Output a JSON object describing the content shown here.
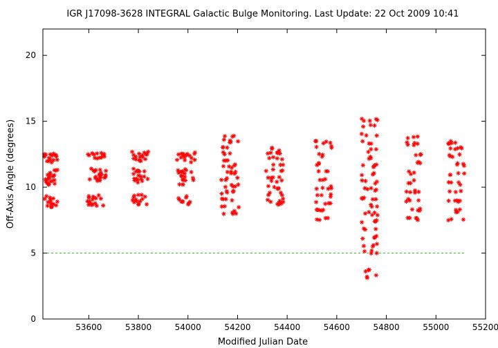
{
  "chart_data": {
    "type": "scatter",
    "title": "IGR J17098-3628   INTEGRAL Galactic Bulge Monitoring.  Last Update: 22 Oct 2009 10:41",
    "xlabel": "Modified Julian Date",
    "ylabel": "Off-Axis Angle (degrees)",
    "xlim": [
      53415,
      55200
    ],
    "ylim": [
      0,
      22
    ],
    "xticks": [
      53600,
      53800,
      54000,
      54200,
      54400,
      54600,
      54800,
      55000,
      55200
    ],
    "yticks": [
      0,
      5,
      10,
      15,
      20
    ],
    "grid": false,
    "colors": {
      "points": "#ff0000",
      "reference_line": "#33cc33",
      "axes": "#000000"
    },
    "reference_line": {
      "y": 5,
      "x_range": [
        53415,
        55120
      ]
    },
    "clusters": [
      {
        "x_range": [
          53420,
          53475
        ],
        "y_values": [
          8.6,
          8.8,
          9.0,
          9.2,
          10.3,
          10.5,
          10.7,
          11.0,
          11.2,
          12.0,
          12.2,
          12.4,
          12.5
        ]
      },
      {
        "x_range": [
          53595,
          53670
        ],
        "y_values": [
          8.7,
          8.9,
          9.1,
          9.4,
          10.5,
          10.7,
          10.9,
          11.2,
          11.4,
          12.3,
          12.5,
          12.6
        ]
      },
      {
        "x_range": [
          53775,
          53840
        ],
        "y_values": [
          8.8,
          9.0,
          9.3,
          10.4,
          10.6,
          10.8,
          11.1,
          11.3,
          12.1,
          12.3,
          12.5,
          12.6
        ]
      },
      {
        "x_range": [
          53955,
          54030
        ],
        "y_values": [
          8.8,
          9.0,
          9.2,
          10.3,
          10.5,
          10.8,
          11.1,
          11.3,
          12.0,
          12.3,
          12.5,
          12.6
        ]
      },
      {
        "x_range": [
          54135,
          54205
        ],
        "y_values": [
          8.1,
          8.6,
          9.1,
          9.6,
          10.1,
          10.6,
          11.1,
          11.6,
          12.1,
          12.6,
          13.0,
          13.5,
          13.8
        ]
      },
      {
        "x_range": [
          54315,
          54385
        ],
        "y_values": [
          8.7,
          9.0,
          9.5,
          10.0,
          10.5,
          10.8,
          11.3,
          11.8,
          12.2,
          12.5,
          12.9
        ]
      },
      {
        "x_range": [
          54510,
          54580
        ],
        "y_values": [
          7.6,
          8.2,
          8.8,
          9.4,
          10.0,
          10.6,
          11.2,
          11.8,
          12.4,
          13.0,
          13.4
        ]
      },
      {
        "x_range": [
          54700,
          54765
        ],
        "y_values": [
          3.2,
          3.7,
          5.1,
          5.6,
          6.2,
          6.8,
          7.4,
          8.0,
          8.6,
          9.2,
          9.8,
          10.4,
          11.0,
          11.6,
          12.2,
          12.8,
          13.4,
          14.0,
          14.6,
          15.1
        ]
      },
      {
        "x_range": [
          54880,
          54940
        ],
        "y_values": [
          7.6,
          8.3,
          9.0,
          9.7,
          10.4,
          11.1,
          11.8,
          12.5,
          13.3,
          13.8
        ]
      },
      {
        "x_range": [
          55050,
          55115
        ],
        "y_values": [
          7.5,
          8.2,
          8.9,
          9.6,
          10.3,
          11.0,
          11.7,
          12.4,
          13.0,
          13.4
        ]
      }
    ]
  }
}
